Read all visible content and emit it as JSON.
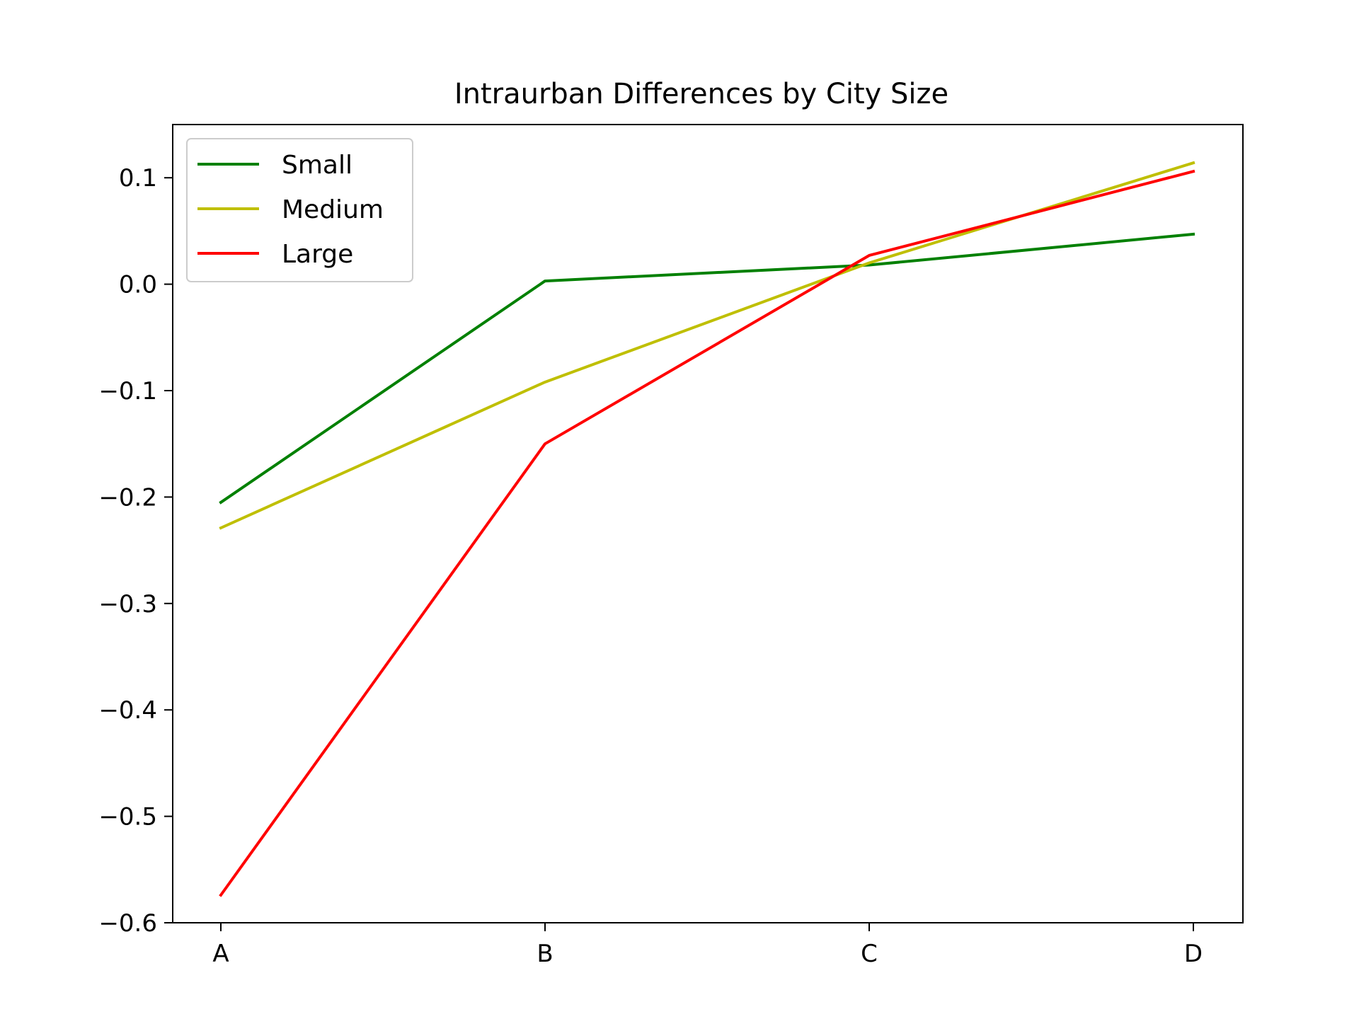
{
  "chart_data": {
    "type": "line",
    "title": "Intraurban Differences by City Size",
    "xlabel": "",
    "ylabel": "",
    "categories": [
      "A",
      "B",
      "C",
      "D"
    ],
    "ylim": [
      -0.6,
      0.15
    ],
    "yticks": [
      0.1,
      0.0,
      -0.1,
      -0.2,
      -0.3,
      -0.4,
      -0.5,
      -0.6
    ],
    "ytick_labels": [
      "0.1",
      "0.0",
      "−0.1",
      "−0.2",
      "−0.3",
      "−0.4",
      "−0.5",
      "−0.6"
    ],
    "grid": false,
    "legend_position": "top-left",
    "series": [
      {
        "name": "Small",
        "color": "#008000",
        "values": [
          -0.205,
          0.003,
          0.018,
          0.047
        ]
      },
      {
        "name": "Medium",
        "color": "#bfbf00",
        "values": [
          -0.229,
          -0.092,
          0.02,
          0.114
        ]
      },
      {
        "name": "Large",
        "color": "#ff0000",
        "values": [
          -0.574,
          -0.15,
          0.027,
          0.106
        ]
      }
    ]
  }
}
